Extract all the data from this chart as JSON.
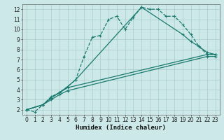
{
  "xlabel": "Humidex (Indice chaleur)",
  "bg_color": "#cce8e8",
  "grid_color": "#aacccc",
  "line_color": "#1a7a6e",
  "xlim": [
    -0.5,
    23.5
  ],
  "ylim": [
    1.5,
    12.5
  ],
  "xticks": [
    0,
    1,
    2,
    3,
    4,
    5,
    6,
    7,
    8,
    9,
    10,
    11,
    12,
    13,
    14,
    15,
    16,
    17,
    18,
    19,
    20,
    21,
    22,
    23
  ],
  "yticks": [
    2,
    3,
    4,
    5,
    6,
    7,
    8,
    9,
    10,
    11,
    12
  ],
  "curve_dashed": {
    "x": [
      0,
      1,
      2,
      3,
      4,
      5,
      6,
      7,
      8,
      9,
      10,
      11,
      12,
      13,
      14,
      15,
      16,
      17,
      18,
      19,
      20,
      21,
      22,
      23
    ],
    "y": [
      2,
      1.8,
      2.5,
      3.3,
      3.7,
      4.3,
      5.0,
      7.3,
      9.2,
      9.4,
      11.0,
      11.3,
      10.0,
      11.2,
      12.2,
      12.0,
      12.0,
      11.3,
      11.3,
      10.5,
      9.5,
      8.3,
      7.5,
      7.5
    ]
  },
  "curve_line1": {
    "x": [
      0,
      2,
      3,
      4,
      5,
      6,
      14,
      19,
      20,
      21,
      22,
      23
    ],
    "y": [
      2,
      2.5,
      3.2,
      3.7,
      4.3,
      5.0,
      12.2,
      9.5,
      8.8,
      8.3,
      7.7,
      7.5
    ]
  },
  "curve_line2": {
    "x": [
      0,
      2,
      3,
      4,
      5,
      22,
      23
    ],
    "y": [
      2,
      2.5,
      3.2,
      3.7,
      4.2,
      7.5,
      7.5
    ]
  },
  "curve_line3": {
    "x": [
      0,
      2,
      3,
      4,
      5,
      22,
      23
    ],
    "y": [
      2,
      2.5,
      3.0,
      3.5,
      3.9,
      7.3,
      7.3
    ]
  }
}
